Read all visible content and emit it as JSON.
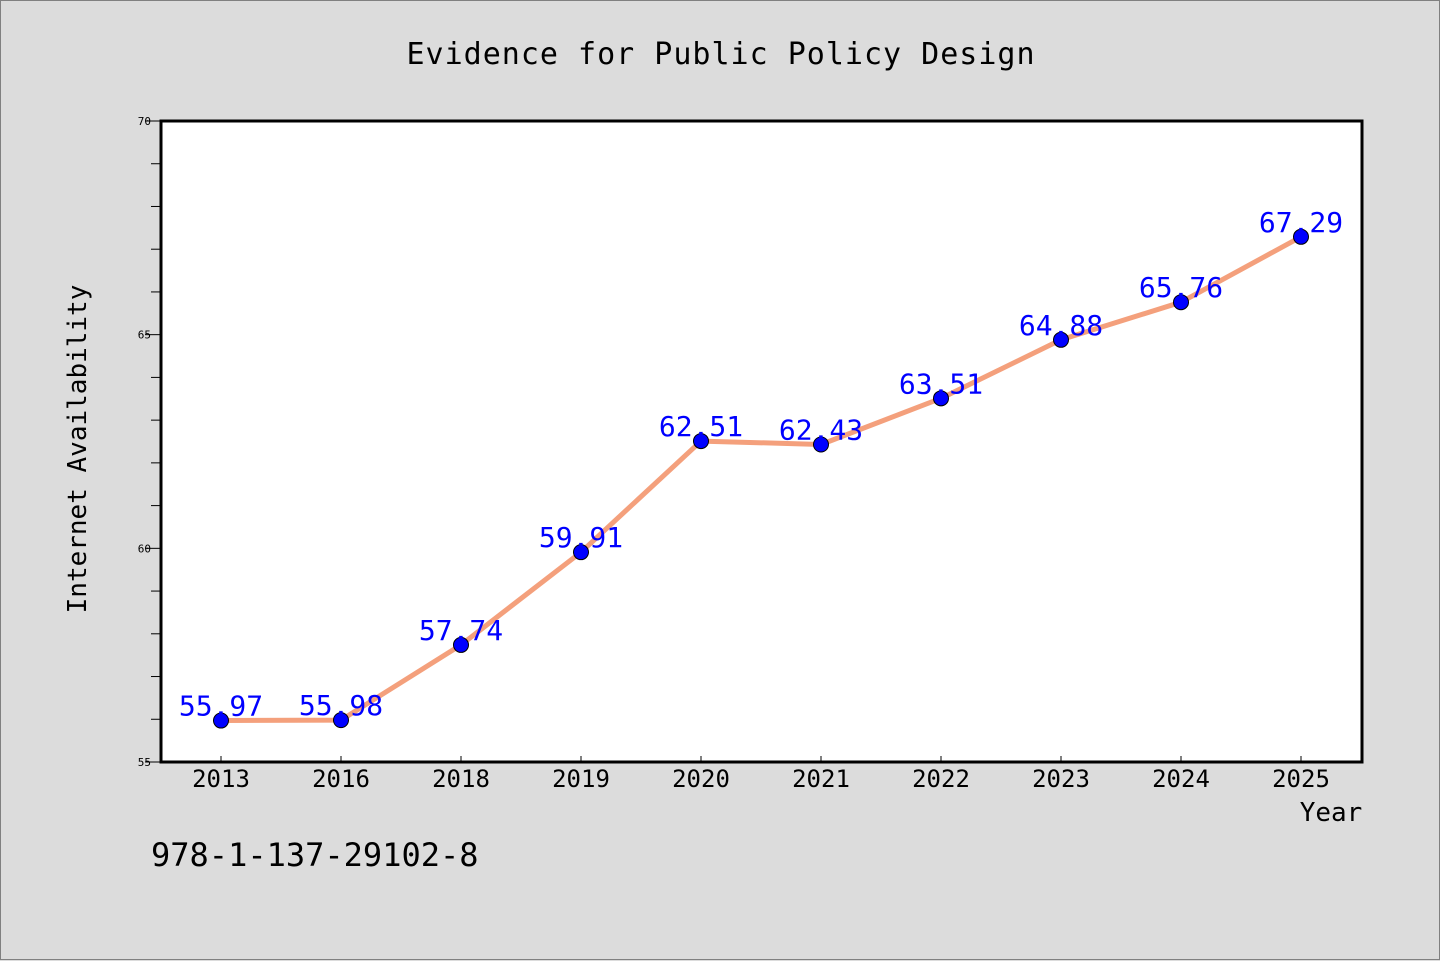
{
  "chart_data": {
    "type": "line",
    "title": "Evidence for Public Policy Design",
    "xlabel": "Year",
    "ylabel": "Internet Availability",
    "categories": [
      "2013",
      "2016",
      "2018",
      "2019",
      "2020",
      "2021",
      "2022",
      "2023",
      "2024",
      "2025"
    ],
    "series": [
      {
        "values": [
          55.97,
          55.98,
          57.74,
          59.91,
          62.51,
          62.43,
          63.51,
          64.88,
          65.76,
          67.29
        ]
      }
    ],
    "data_labels": [
      "55.97",
      "55.98",
      "57.74",
      "59.91",
      "62.51",
      "62.43",
      "63.51",
      "64.88",
      "65.76",
      "67.29"
    ],
    "ylim": [
      55,
      70
    ],
    "y_major_ticks": [
      55,
      60,
      65,
      70
    ],
    "y_minor_step": 1,
    "grid": false,
    "legend": "none",
    "colors": {
      "line": "#f4a07c",
      "marker": "#0000ff",
      "data_label": "#0000ff",
      "background": "#dcdcdc",
      "plot_background": "#ffffff"
    }
  },
  "footer": {
    "code": "978-1-137-29102-8"
  }
}
